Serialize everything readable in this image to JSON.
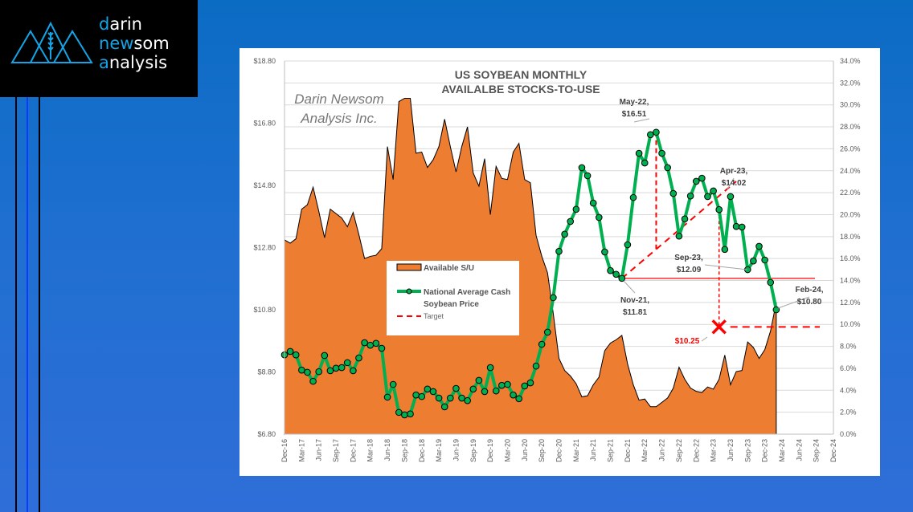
{
  "logo": {
    "lines": [
      {
        "first": "d",
        "rest": "arin"
      },
      {
        "first": "n",
        "mid": "ew",
        "rest": "som"
      },
      {
        "first": "a",
        "rest": "nalysis"
      }
    ]
  },
  "watermark": [
    "Darin Newsom",
    "Analysis Inc."
  ],
  "colors": {
    "area": "#ed7d31",
    "price": "#00b050",
    "target": "#ff0000",
    "accent": "#14a4e6"
  },
  "chart_data": {
    "type": "line",
    "title": [
      "US SOYBEAN MONTHLY",
      "AVAILABLE STOCKS-TO-USE"
    ],
    "title_display": [
      "US SOYBEAN MONTHLY",
      "AVAILALBE STOCKS-TO-USE"
    ],
    "x_ticks": [
      "Dec-16",
      "Mar-17",
      "Jun-17",
      "Sep-17",
      "Dec-17",
      "Mar-18",
      "Jun-18",
      "Sep-18",
      "Dec-18",
      "Mar-19",
      "Jun-19",
      "Sep-19",
      "Dec-19",
      "Mar-20",
      "Jun-20",
      "Sep-20",
      "Dec-20",
      "Mar-21",
      "Jun-21",
      "Sep-21",
      "Dec-21",
      "Mar-22",
      "Jun-22",
      "Sep-22",
      "Dec-22",
      "Mar-23",
      "Jun-23",
      "Sep-23",
      "Dec-23",
      "Mar-24",
      "Jun-24",
      "Sep-24",
      "Dec-24"
    ],
    "x_start": "Dec-16",
    "x_months_span": 96,
    "y_left": {
      "min": 6.8,
      "max": 18.8,
      "ticks": [
        "$6.80",
        "$8.80",
        "$10.80",
        "$12.80",
        "$14.80",
        "$16.80",
        "$18.80"
      ]
    },
    "y_right": {
      "min": 0,
      "max": 34,
      "ticks": [
        "0.0%",
        "2.0%",
        "4.0%",
        "6.0%",
        "8.0%",
        "10.0%",
        "12.0%",
        "14.0%",
        "16.0%",
        "18.0%",
        "20.0%",
        "22.0%",
        "24.0%",
        "26.0%",
        "28.0%",
        "30.0%",
        "32.0%",
        "34.0%"
      ]
    },
    "grid": true,
    "legend_position": "center-left",
    "series": [
      {
        "name": "Available S/U",
        "type": "area",
        "axis": "right",
        "values": [
          17.7,
          17.4,
          17.8,
          20.5,
          20.9,
          22.5,
          20.3,
          17.9,
          20.5,
          20.1,
          19.7,
          18.9,
          20.2,
          18.2,
          16.0,
          16.2,
          16.3,
          16.9,
          26.2,
          23.2,
          30.3,
          30.6,
          30.6,
          25.6,
          25.7,
          24.3,
          25.0,
          26.2,
          28.7,
          26.2,
          23.9,
          26.2,
          28.0,
          23.8,
          22.6,
          25.1,
          20.0,
          24.4,
          23.3,
          23.2,
          25.7,
          26.5,
          23.2,
          22.9,
          18.1,
          16.2,
          14.7,
          11.0,
          6.9,
          5.8,
          5.3,
          4.6,
          3.4,
          3.5,
          4.5,
          5.2,
          7.6,
          8.3,
          8.6,
          9.0,
          6.4,
          4.5,
          3.1,
          3.2,
          2.5,
          2.5,
          2.9,
          3.3,
          4.2,
          6.1,
          5.0,
          4.2,
          3.9,
          3.8,
          4.3,
          4.1,
          5.0,
          7.2,
          4.5,
          5.7,
          5.8,
          8.4,
          7.9,
          6.9,
          7.7,
          9.4,
          12.0
        ]
      },
      {
        "name": "National Average Cash Soybean Price",
        "type": "line",
        "axis": "left",
        "values": [
          9.35,
          9.46,
          9.35,
          8.86,
          8.79,
          8.5,
          8.81,
          9.33,
          8.84,
          8.92,
          8.94,
          9.1,
          8.84,
          9.25,
          9.74,
          9.66,
          9.72,
          9.56,
          7.99,
          8.4,
          7.5,
          7.42,
          7.45,
          8.06,
          8.01,
          8.25,
          8.17,
          7.96,
          7.68,
          7.96,
          8.27,
          7.96,
          7.88,
          8.25,
          8.53,
          8.17,
          8.94,
          8.19,
          8.37,
          8.4,
          8.06,
          7.94,
          8.35,
          8.45,
          8.99,
          9.69,
          10.08,
          11.19,
          12.68,
          13.23,
          13.64,
          14.03,
          15.37,
          15.11,
          14.23,
          13.77,
          12.66,
          12.06,
          11.94,
          11.81,
          12.89,
          14.41,
          15.83,
          15.52,
          16.43,
          16.51,
          15.83,
          15.37,
          14.54,
          13.17,
          13.72,
          14.46,
          14.93,
          15.03,
          14.44,
          14.62,
          14.02,
          12.74,
          14.44,
          13.48,
          13.46,
          12.09,
          12.37,
          12.84,
          12.4,
          11.68,
          10.8
        ]
      },
      {
        "name": "Target",
        "type": "dashed",
        "axis": "left",
        "value": 10.25
      }
    ],
    "legend": [
      "Available S/U",
      "National Average Cash Soybean Price",
      "Target"
    ],
    "legend_lines": [
      "Available S/U",
      "National Average Cash",
      "Soybean Price",
      "Target"
    ],
    "support_level": 11.81,
    "trendline": {
      "from_month": 59,
      "from_price": 11.81,
      "to_month": 79,
      "to_price": 14.93
    },
    "retrace": {
      "month": 65,
      "from_price": 16.51,
      "to_price": 12.75
    },
    "target_marker": {
      "month": 76,
      "price": 10.25
    },
    "annotations": [
      {
        "month": 65,
        "price": 16.51,
        "lines": [
          "May-22,",
          "$16.51"
        ]
      },
      {
        "month": 76,
        "price": 14.02,
        "lines": [
          "Apr-23,",
          "$14.02"
        ]
      },
      {
        "month": 81,
        "price": 12.09,
        "lines": [
          "Sep-23,",
          "$12.09"
        ]
      },
      {
        "month": 59,
        "price": 11.81,
        "lines": [
          "Nov-21,",
          "$11.81"
        ]
      },
      {
        "month": 86,
        "price": 10.8,
        "lines": [
          "Feb-24,",
          "$10.80"
        ]
      },
      {
        "month": 76,
        "price": 10.25,
        "lines": [
          "$10.25"
        ],
        "red": true
      }
    ]
  }
}
